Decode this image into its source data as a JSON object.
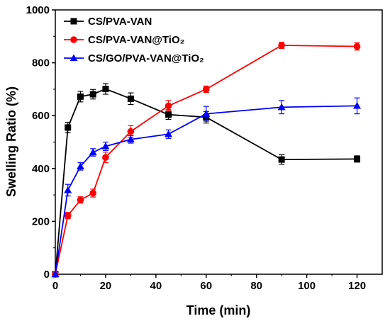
{
  "chart_data": {
    "type": "line",
    "xlabel": "Time (min)",
    "ylabel": "Swelling Ratio (%)",
    "xlim": [
      0,
      130
    ],
    "ylim": [
      0,
      1000
    ],
    "xticks": [
      0,
      20,
      40,
      60,
      80,
      100,
      120
    ],
    "yticks": [
      0,
      200,
      400,
      600,
      800,
      1000
    ],
    "grid": false,
    "legend_position": "top-left",
    "series": [
      {
        "name": "CS/PVA-VAN",
        "color": "#000000",
        "marker": "square",
        "x": [
          0,
          5,
          10,
          15,
          20,
          30,
          45,
          60,
          90,
          120
        ],
        "y": [
          0,
          555,
          672,
          681,
          701,
          664,
          604,
          594,
          434,
          436
        ],
        "err": [
          0,
          20,
          20,
          18,
          20,
          22,
          18,
          22,
          18,
          12
        ]
      },
      {
        "name": "CS/PVA-VAN@TiO₂",
        "color": "#ff0000",
        "marker": "circle",
        "x": [
          0,
          5,
          10,
          15,
          20,
          30,
          45,
          60,
          90,
          120
        ],
        "y": [
          0,
          222,
          281,
          307,
          442,
          540,
          637,
          700,
          866,
          862
        ],
        "err": [
          0,
          12,
          12,
          15,
          20,
          22,
          20,
          12,
          12,
          14
        ]
      },
      {
        "name": "CS/GO/PVA-VAN@TiO₂",
        "color": "#0000ff",
        "marker": "triangle",
        "x": [
          0,
          5,
          10,
          15,
          20,
          30,
          45,
          60,
          90,
          120
        ],
        "y": [
          0,
          318,
          408,
          461,
          484,
          510,
          530,
          607,
          632,
          637
        ],
        "err": [
          0,
          22,
          14,
          14,
          16,
          14,
          16,
          28,
          25,
          30
        ]
      }
    ]
  }
}
